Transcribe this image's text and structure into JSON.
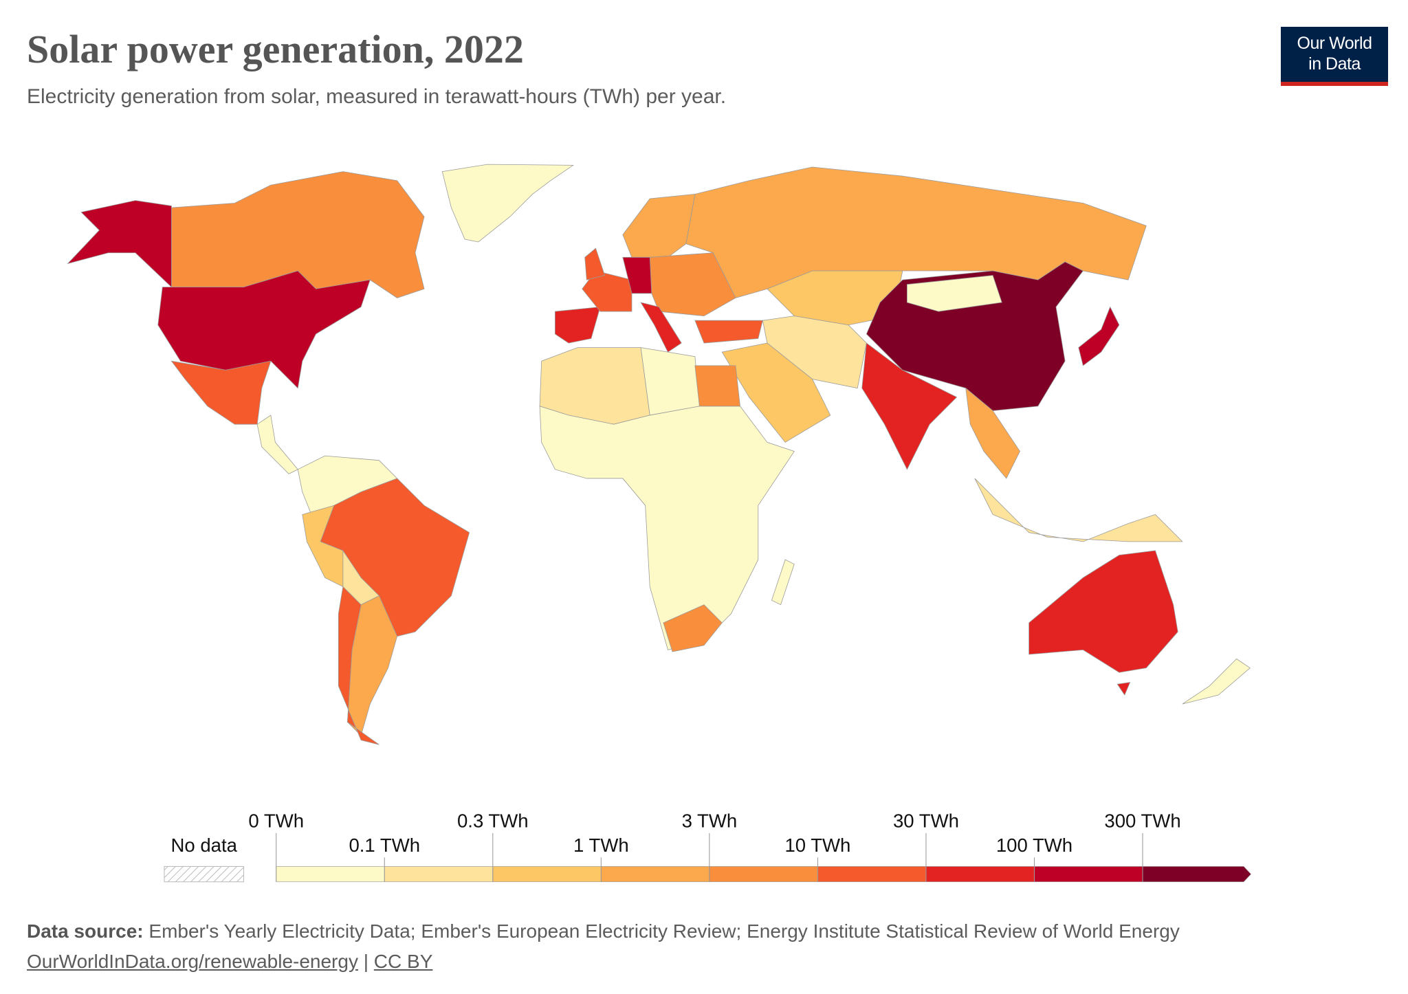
{
  "header": {
    "title": "Solar power generation, 2022",
    "subtitle": "Electricity generation from solar, measured in terawatt-hours (TWh) per year."
  },
  "logo": {
    "line1": "Our World",
    "line2": "in Data"
  },
  "legend": {
    "no_data": "No data",
    "ticks": [
      {
        "value": 0,
        "label": "0 TWh"
      },
      {
        "value": 0.1,
        "label": "0.1 TWh"
      },
      {
        "value": 0.3,
        "label": "0.3 TWh"
      },
      {
        "value": 1,
        "label": "1 TWh"
      },
      {
        "value": 3,
        "label": "3 TWh"
      },
      {
        "value": 10,
        "label": "10 TWh"
      },
      {
        "value": 30,
        "label": "30 TWh"
      },
      {
        "value": 100,
        "label": "100 TWh"
      },
      {
        "value": 300,
        "label": "300 TWh"
      }
    ],
    "colors": [
      "#fefac7",
      "#fde39b",
      "#fdc765",
      "#fca94d",
      "#f98e3c",
      "#f55a2c",
      "#e32322",
      "#bf0026",
      "#7f0027"
    ]
  },
  "footer": {
    "source_label": "Data source:",
    "source_text": "Ember's Yearly Electricity Data; Ember's European Electricity Review; Energy Institute Statistical Review of World Energy",
    "link": "OurWorldInData.org/renewable-energy",
    "separator": "|",
    "license": "CC BY"
  }
}
